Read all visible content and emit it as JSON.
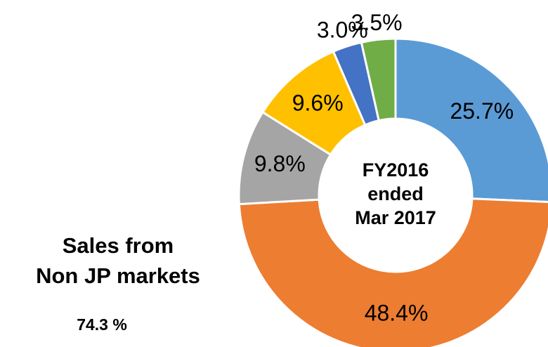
{
  "chart_data": {
    "type": "donut",
    "categories": [
      null,
      null,
      null,
      null,
      null,
      null
    ],
    "values": [
      25.7,
      48.4,
      9.8,
      9.6,
      3.0,
      3.5
    ],
    "value_labels": [
      "25.7%",
      "48.4%",
      "9.8%",
      "9.6%",
      "3.0%",
      "3.5%"
    ],
    "colors": [
      "#5b9bd5",
      "#ed7d31",
      "#a5a5a5",
      "#ffc000",
      "#4472c4",
      "#70ad47"
    ],
    "center_label": [
      "FY2016",
      "ended",
      "Mar 2017"
    ],
    "annotation": [
      "Sales from",
      "Non JP markets"
    ],
    "annotation_value": "74.3 %"
  }
}
